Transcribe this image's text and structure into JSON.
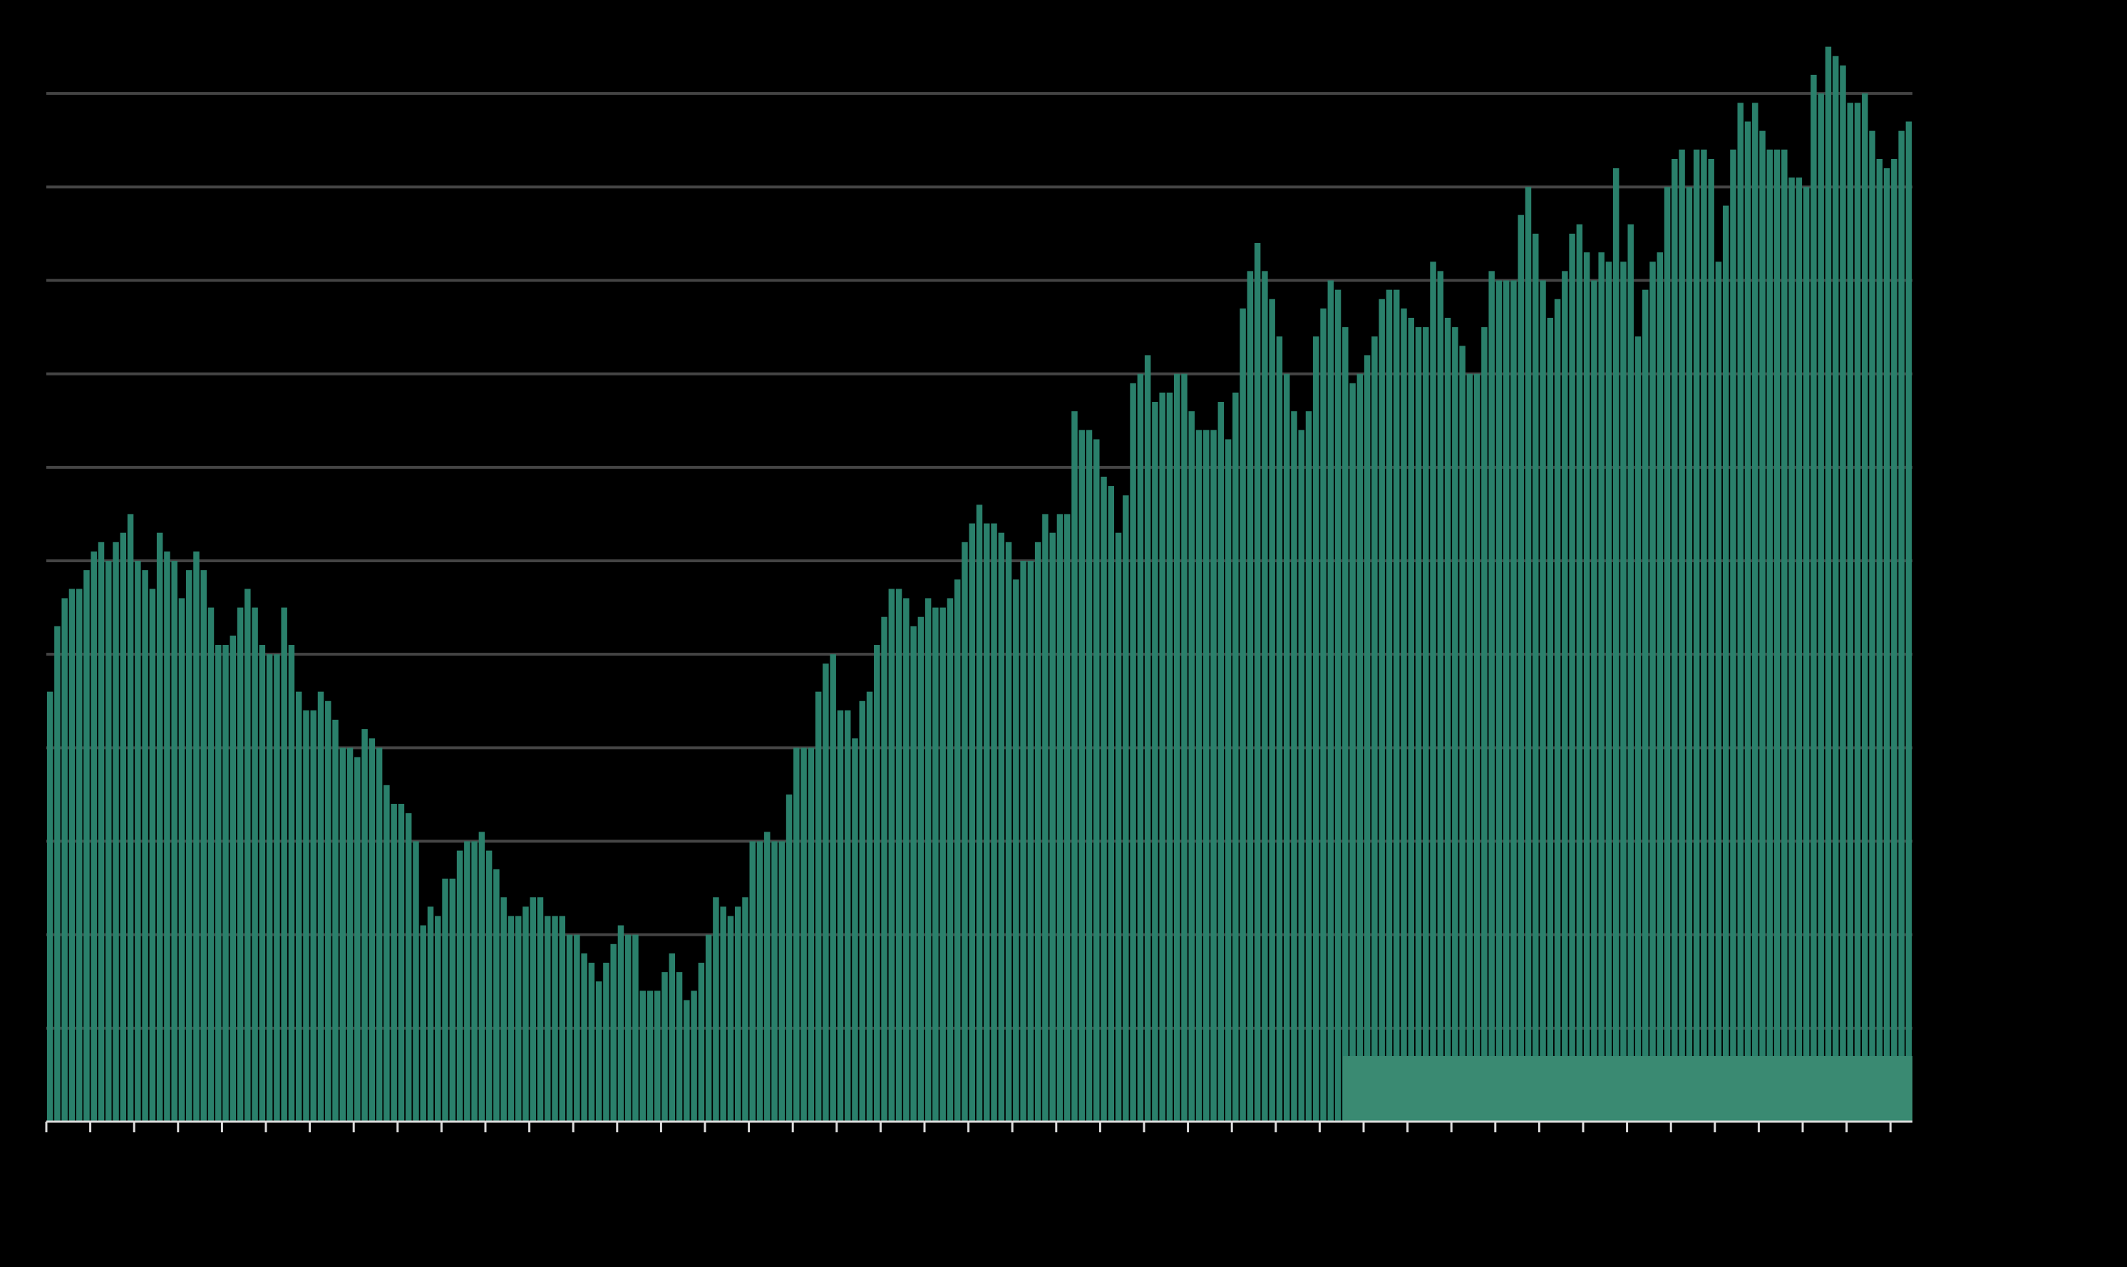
{
  "chart_data": {
    "type": "bar",
    "color": "#2a806b",
    "grid": true,
    "ylim": [
      0,
      120
    ],
    "yticks": [
      0,
      10,
      20,
      30,
      40,
      50,
      60,
      70,
      80,
      90,
      100,
      110
    ],
    "categories": [
      null,
      null,
      null,
      null,
      null,
      null,
      null,
      null,
      null,
      null,
      null,
      null,
      null,
      null,
      null,
      null,
      null,
      null,
      null,
      null,
      null,
      null,
      null,
      null,
      null,
      null,
      null,
      null,
      null,
      null,
      null,
      null,
      null,
      null,
      null,
      null,
      null,
      null,
      null,
      null,
      null,
      null,
      null,
      null,
      null,
      null,
      null,
      null,
      null,
      null,
      null,
      null,
      null,
      null,
      null,
      null,
      null,
      null,
      null,
      null,
      null,
      null,
      null,
      null,
      null,
      null,
      null,
      null,
      null,
      null,
      null,
      null,
      null,
      null,
      null,
      null,
      null,
      null,
      null,
      null,
      null,
      null,
      null,
      null,
      null,
      null,
      null,
      null,
      null,
      null,
      null,
      null,
      null,
      null,
      null,
      null,
      null,
      null,
      null,
      null,
      null,
      null,
      null,
      null,
      null,
      null,
      null,
      null,
      null,
      null,
      null,
      null,
      null,
      null,
      null,
      null,
      null,
      null,
      null,
      null,
      null,
      null,
      null,
      null,
      null,
      null,
      null,
      null,
      null,
      null,
      null,
      null,
      null,
      null,
      null,
      null,
      null,
      null,
      null,
      null,
      null,
      null,
      null,
      null,
      null,
      null,
      null,
      null,
      null,
      null,
      null,
      null,
      null,
      null,
      null,
      null,
      null,
      null,
      null,
      null,
      null,
      null,
      null,
      null,
      null,
      null,
      null,
      null,
      null,
      null,
      null,
      null,
      null,
      null,
      null,
      null,
      null,
      null,
      null,
      null,
      null,
      null,
      null,
      null,
      null,
      null,
      null,
      null,
      null,
      null,
      null,
      null,
      null,
      null,
      null,
      null,
      null,
      null,
      null,
      null,
      null,
      null,
      null,
      null,
      null,
      null,
      null,
      null,
      null,
      null,
      null,
      null,
      null,
      null,
      null,
      null,
      null,
      null,
      null,
      null,
      null,
      null,
      null,
      null,
      null,
      null,
      null,
      null,
      null,
      null,
      null,
      null,
      null,
      null,
      null,
      null,
      null,
      null,
      null,
      null,
      null,
      null,
      null,
      null,
      null,
      null,
      null,
      null,
      null,
      null,
      null,
      null,
      null,
      null,
      null
    ],
    "values": [
      46,
      53,
      56,
      57,
      57,
      59,
      61,
      62,
      60,
      62,
      63,
      65,
      60,
      59,
      57,
      63,
      61,
      60,
      56,
      59,
      61,
      59,
      55,
      51,
      51,
      52,
      55,
      57,
      55,
      51,
      50,
      50,
      55,
      51,
      46,
      44,
      44,
      46,
      45,
      43,
      40,
      40,
      39,
      42,
      41,
      40,
      36,
      34,
      34,
      33,
      30,
      21,
      23,
      22,
      26,
      26,
      29,
      30,
      30,
      31,
      29,
      27,
      24,
      22,
      22,
      23,
      24,
      24,
      22,
      22,
      22,
      20,
      20,
      18,
      17,
      15,
      17,
      19,
      21,
      20,
      20,
      14,
      14,
      14,
      16,
      18,
      16,
      13,
      14,
      17,
      20,
      24,
      23,
      22,
      23,
      24,
      30,
      30,
      31,
      30,
      30,
      35,
      40,
      40,
      40,
      46,
      49,
      50,
      44,
      44,
      41,
      45,
      46,
      51,
      54,
      57,
      57,
      56,
      53,
      54,
      56,
      55,
      55,
      56,
      58,
      62,
      64,
      66,
      64,
      64,
      63,
      62,
      58,
      60,
      60,
      62,
      65,
      63,
      65,
      65,
      76,
      74,
      74,
      73,
      69,
      68,
      63,
      67,
      79,
      80,
      82,
      77,
      78,
      78,
      80,
      80,
      76,
      74,
      74,
      74,
      77,
      73,
      78,
      87,
      91,
      94,
      91,
      88,
      84,
      80,
      76,
      74,
      76,
      84,
      87,
      90,
      89,
      85,
      79,
      80,
      82,
      84,
      88,
      89,
      89,
      87,
      86,
      85,
      85,
      92,
      91,
      86,
      85,
      83,
      80,
      80,
      85,
      91,
      90,
      90,
      90,
      97,
      100,
      95,
      90,
      86,
      88,
      91,
      95,
      96,
      93,
      90,
      93,
      92,
      102,
      92,
      96,
      84,
      89,
      92,
      93,
      100,
      103,
      104,
      100,
      104,
      104,
      103,
      92,
      98,
      104,
      109,
      107,
      109,
      106,
      104,
      104,
      104,
      101,
      101,
      100,
      112,
      110,
      115,
      114,
      113,
      109,
      109,
      110,
      106,
      103,
      102,
      103,
      106,
      107
    ]
  }
}
